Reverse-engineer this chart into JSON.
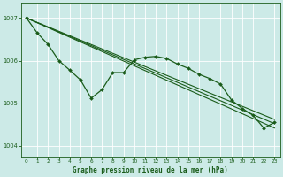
{
  "background_color": "#cceae7",
  "grid_color": "#ffffff",
  "line_color": "#1a5c1a",
  "xlabel": "Graphe pression niveau de la mer (hPa)",
  "ylim": [
    1003.75,
    1007.35
  ],
  "xlim": [
    -0.5,
    23.5
  ],
  "yticks": [
    1004,
    1005,
    1006,
    1007
  ],
  "xticks": [
    0,
    1,
    2,
    3,
    4,
    5,
    6,
    7,
    8,
    9,
    10,
    11,
    12,
    13,
    14,
    15,
    16,
    17,
    18,
    19,
    20,
    21,
    22,
    23
  ],
  "straight_lines": [
    {
      "x": [
        0,
        23
      ],
      "y": [
        1007.0,
        1004.42
      ]
    },
    {
      "x": [
        0,
        23
      ],
      "y": [
        1007.0,
        1004.52
      ]
    },
    {
      "x": [
        0,
        23
      ],
      "y": [
        1007.0,
        1004.62
      ]
    }
  ],
  "jagged_line": {
    "x": [
      0,
      1,
      2,
      3,
      4,
      5,
      6,
      7,
      8,
      9,
      10,
      11,
      12,
      13,
      14,
      15,
      16,
      17,
      18,
      19,
      20,
      21,
      22,
      23
    ],
    "y": [
      1007.0,
      1006.65,
      1006.38,
      1006.0,
      1005.78,
      1005.55,
      1005.12,
      1005.32,
      1005.72,
      1005.72,
      1006.02,
      1006.08,
      1006.1,
      1006.05,
      1005.92,
      1005.82,
      1005.68,
      1005.58,
      1005.45,
      1005.08,
      1004.88,
      1004.72,
      1004.42,
      1004.55
    ]
  }
}
